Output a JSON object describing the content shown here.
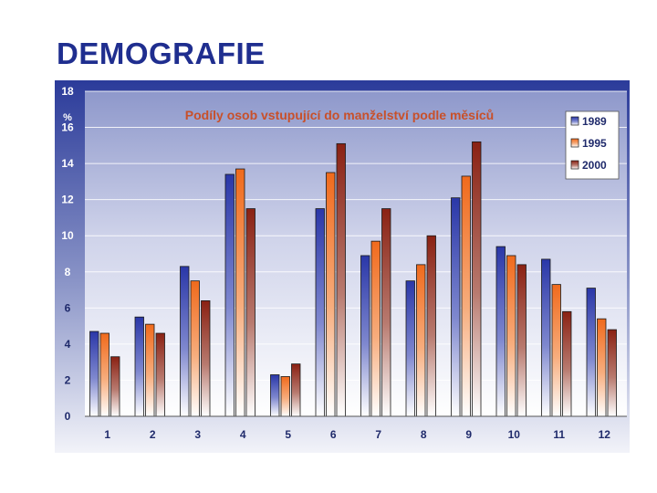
{
  "slide": {
    "title": "DEMOGRAFIE"
  },
  "chart_data": {
    "type": "bar",
    "title": "Podíly osob vstupující do manželství podle měsíců",
    "ylabel": "%",
    "xlabel": "",
    "ylim": [
      0,
      18
    ],
    "yticks": [
      0,
      2,
      4,
      6,
      8,
      10,
      12,
      14,
      16,
      18
    ],
    "grid": true,
    "legend_position": "top-right",
    "categories": [
      "1",
      "2",
      "3",
      "4",
      "5",
      "6",
      "7",
      "8",
      "9",
      "10",
      "11",
      "12"
    ],
    "series": [
      {
        "name": "1989",
        "color": "#2a37a8",
        "values": [
          4.7,
          5.5,
          8.3,
          13.4,
          2.3,
          11.5,
          8.9,
          7.5,
          12.1,
          9.4,
          8.7,
          7.1
        ]
      },
      {
        "name": "1995",
        "color": "#f06a1c",
        "values": [
          4.6,
          5.1,
          7.5,
          13.7,
          2.2,
          13.5,
          9.7,
          8.4,
          13.3,
          8.9,
          7.3,
          5.4
        ]
      },
      {
        "name": "2000",
        "color": "#8a2113",
        "values": [
          3.3,
          4.6,
          6.4,
          11.5,
          2.9,
          15.1,
          11.5,
          10.0,
          15.2,
          8.4,
          5.8,
          4.8
        ]
      }
    ]
  }
}
